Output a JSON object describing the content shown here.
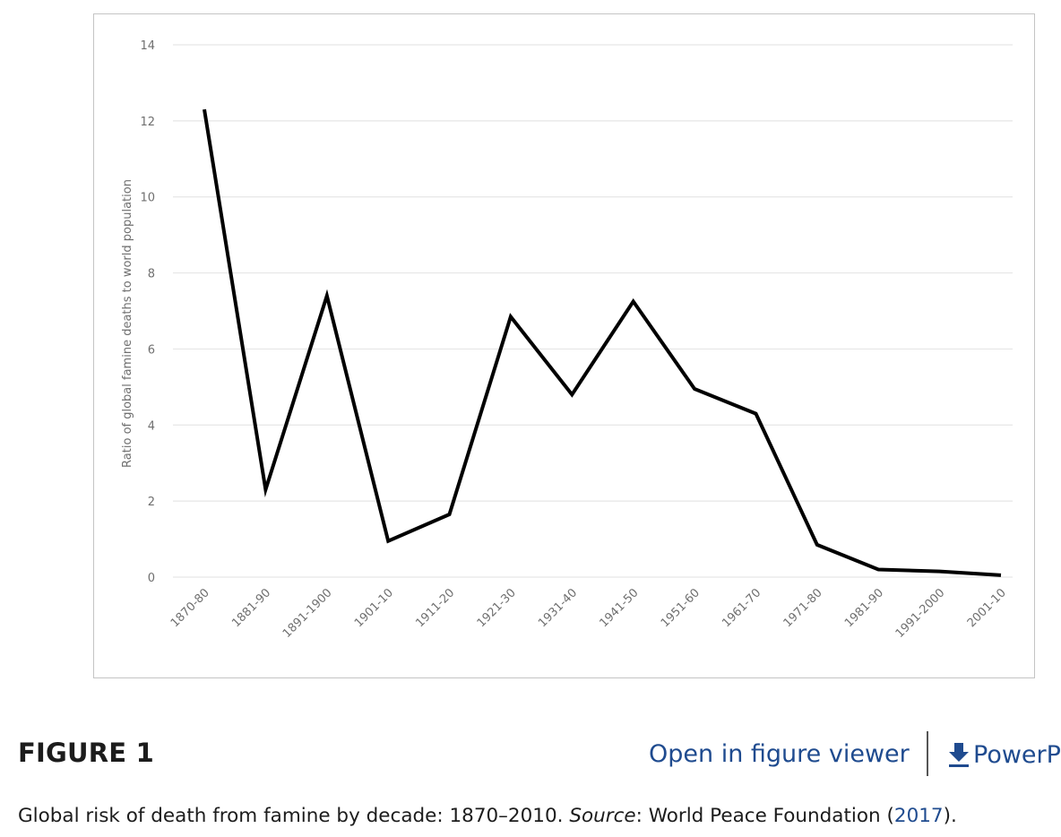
{
  "chart_data": {
    "type": "line",
    "title": "",
    "xlabel": "",
    "ylabel": "Ratio of global famine deaths to world population",
    "ylim": [
      0,
      14
    ],
    "yticks": [
      0,
      2,
      4,
      6,
      8,
      10,
      12,
      14
    ],
    "ytick_labels": [
      "0",
      "2",
      "4",
      "6",
      "8",
      "10",
      "12",
      "14"
    ],
    "grid": true,
    "categories": [
      "1870-80",
      "1881-90",
      "1891-1900",
      "1901-10",
      "1911-20",
      "1921-30",
      "1931-40",
      "1941-50",
      "1951-60",
      "1961-70",
      "1971-80",
      "1981-90",
      "1991-2000",
      "2001-10"
    ],
    "series": [
      {
        "values": [
          12.3,
          2.3,
          7.4,
          0.95,
          1.65,
          6.85,
          4.8,
          7.25,
          4.95,
          4.3,
          0.85,
          0.2,
          0.15,
          0.05
        ],
        "color": "#000000"
      }
    ]
  },
  "figure": {
    "label": "FIGURE 1",
    "open_viewer_label": "Open in figure viewer",
    "powerpoint_label": "PowerP",
    "download_icon": "download-icon"
  },
  "caption": {
    "text_before": "Global risk of death from famine by decade: 1870–2010. ",
    "source_label": "Source",
    "text_middle": ": World Peace Foundation (",
    "ref_year": "2017",
    "text_end": ")."
  }
}
